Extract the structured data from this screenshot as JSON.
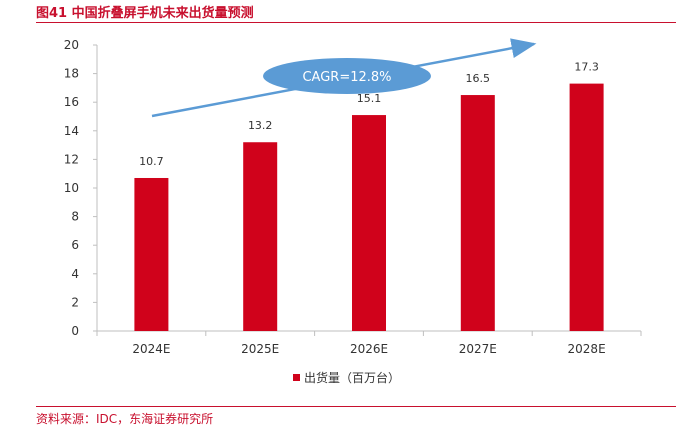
{
  "figure": {
    "title": "图41  中国折叠屏手机未来出货量预测",
    "source": "资料来源：IDC，东海证券研究所"
  },
  "chart_data": {
    "type": "bar",
    "title": "中国折叠屏手机未来出货量预测",
    "categories": [
      "2024E",
      "2025E",
      "2026E",
      "2027E",
      "2028E"
    ],
    "series": [
      {
        "name": "出货量（百万台）",
        "values": [
          10.7,
          13.2,
          15.1,
          16.5,
          17.3
        ],
        "color": "#d0021b"
      }
    ],
    "data_labels": [
      "10.7",
      "13.2",
      "15.1",
      "16.5",
      "17.3"
    ],
    "y_ticks": [
      "0",
      "2",
      "4",
      "6",
      "8",
      "10",
      "12",
      "14",
      "16",
      "18",
      "20"
    ],
    "ylim": [
      0,
      20
    ],
    "xlabel": "",
    "ylabel": "",
    "grid": false,
    "legend": "bottom-center",
    "annotation": {
      "text": "CAGR=12.8%",
      "color": "#5b9bd5"
    }
  }
}
